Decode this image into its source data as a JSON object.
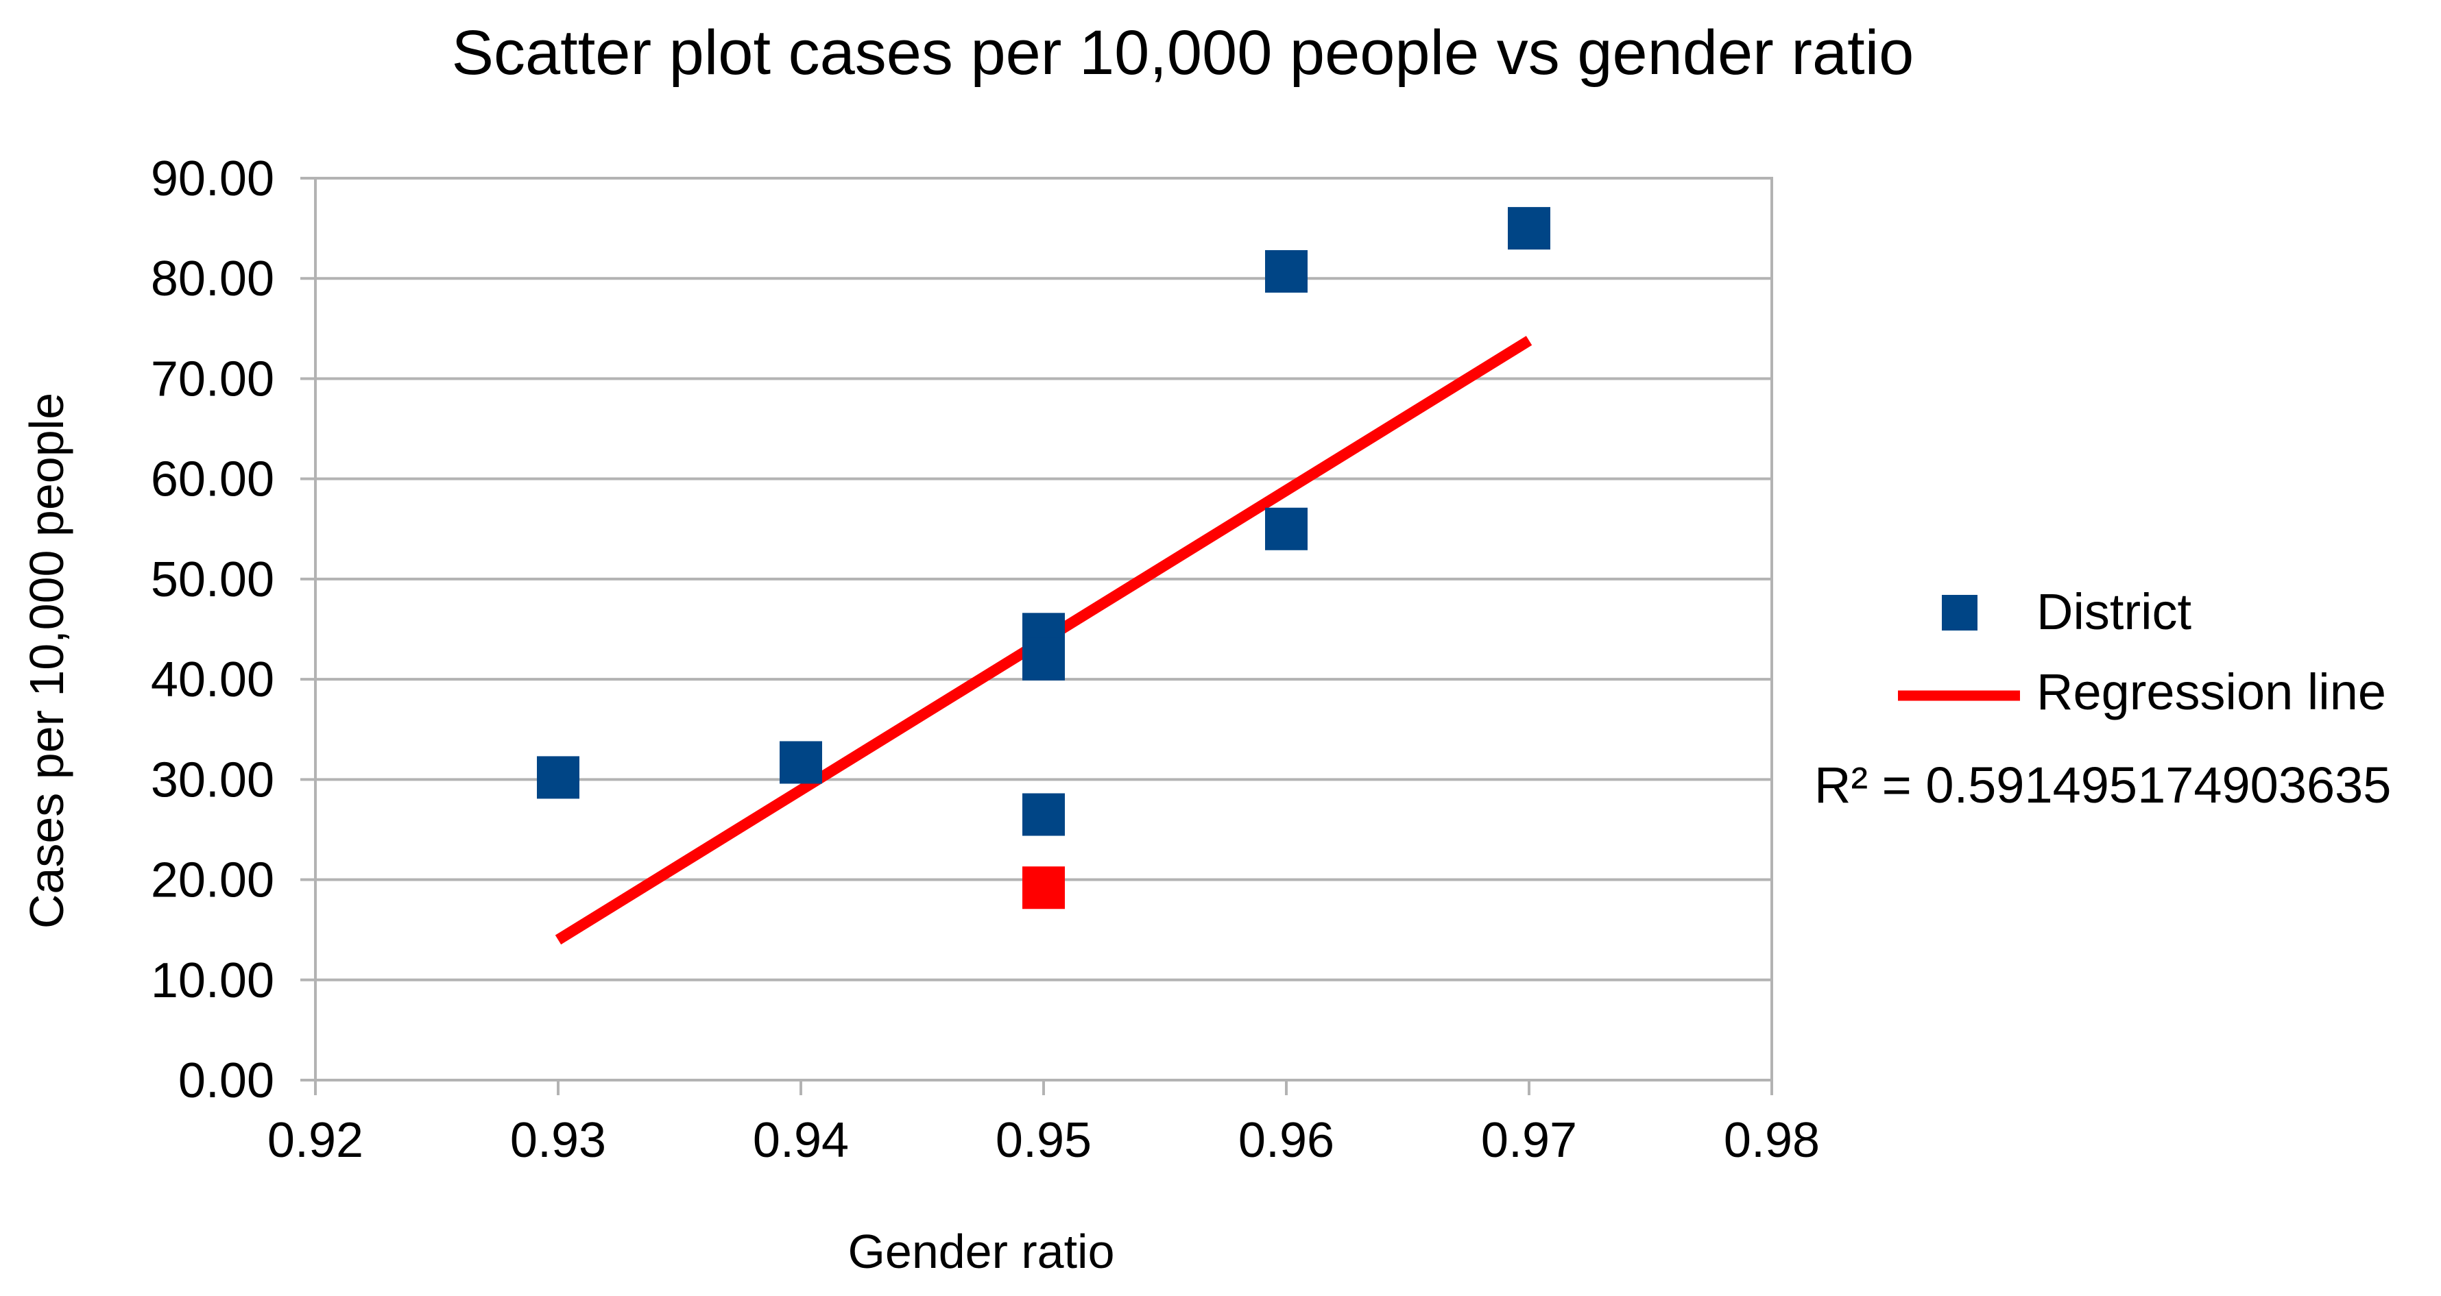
{
  "chart_data": {
    "type": "scatter",
    "title": "Scatter plot cases per 10,000 people vs gender ratio",
    "xlabel": "Gender ratio",
    "ylabel": "Cases per 10,000 people",
    "xlim": [
      0.92,
      0.98
    ],
    "ylim": [
      0,
      90
    ],
    "x_ticks": [
      0.92,
      0.93,
      0.94,
      0.95,
      0.96,
      0.97,
      0.98
    ],
    "x_tick_labels": [
      "0.92",
      "0.93",
      "0.94",
      "0.95",
      "0.96",
      "0.97",
      "0.98"
    ],
    "y_ticks": [
      0,
      10,
      20,
      30,
      40,
      50,
      60,
      70,
      80,
      90
    ],
    "y_tick_labels": [
      "0.00",
      "10.00",
      "20.00",
      "30.00",
      "40.00",
      "50.00",
      "60.00",
      "70.00",
      "80.00",
      "90.00"
    ],
    "grid": true,
    "series": [
      {
        "name": "District",
        "color": "#004586",
        "points": [
          {
            "x": 0.93,
            "y": 30.2
          },
          {
            "x": 0.94,
            "y": 31.7
          },
          {
            "x": 0.95,
            "y": 44.5
          },
          {
            "x": 0.95,
            "y": 42.0
          },
          {
            "x": 0.95,
            "y": 26.5
          },
          {
            "x": 0.96,
            "y": 80.7
          },
          {
            "x": 0.96,
            "y": 55.0
          },
          {
            "x": 0.97,
            "y": 85.0
          }
        ]
      }
    ],
    "highlighted_points": [
      {
        "x": 0.95,
        "y": 19.2,
        "color": "#ff0000"
      }
    ],
    "regression": {
      "name": "Regression line",
      "color": "#ff0000",
      "x_start": 0.93,
      "y_start": 14.0,
      "x_end": 0.97,
      "y_end": 73.8
    },
    "legend": {
      "placement": "right",
      "items": [
        {
          "label": "District",
          "kind": "square",
          "color": "#004586"
        },
        {
          "label": "Regression line",
          "kind": "line",
          "color": "#ff0000"
        }
      ]
    },
    "r_squared_label": "R² = 0.591495174903635"
  }
}
